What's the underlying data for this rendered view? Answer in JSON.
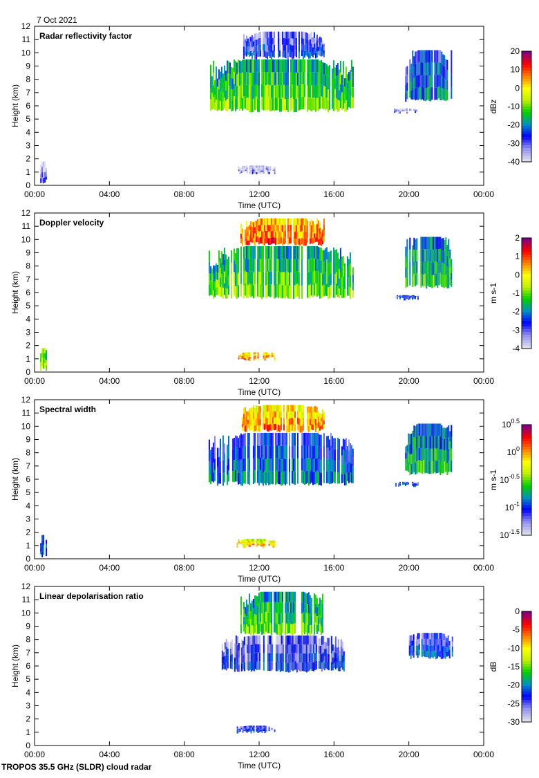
{
  "date": "7 Oct 2021",
  "footer": "TROPOS 35.5 GHz (SLDR) cloud radar",
  "colormap": [
    "#dcdcec",
    "#9090f0",
    "#0000ff",
    "#0090c0",
    "#00d000",
    "#c0f000",
    "#ffff00",
    "#ff8000",
    "#ff0000",
    "#800080"
  ],
  "chart_data": [
    {
      "type": "heatmap",
      "title": "Radar reflectivity factor",
      "xlabel": "Time (UTC)",
      "ylabel": "Height (km)",
      "xticks": [
        "00:00",
        "04:00",
        "08:00",
        "12:00",
        "16:00",
        "20:00",
        "00:00"
      ],
      "xlim": [
        0,
        24
      ],
      "ylim": [
        0,
        12
      ],
      "yticks": [
        0,
        1,
        2,
        3,
        4,
        5,
        6,
        7,
        8,
        9,
        10,
        11,
        12
      ],
      "colorbar": {
        "label": "dBz",
        "min": -40,
        "max": 20,
        "ticks": [
          "20",
          "10",
          "0",
          "-10",
          "-20",
          "-30",
          "-40"
        ],
        "scale": "linear"
      },
      "features": [
        {
          "t": [
            9.3,
            17.0
          ],
          "h": [
            5.5,
            9.5
          ],
          "value": -15
        },
        {
          "t": [
            11.0,
            15.5
          ],
          "h": [
            9.5,
            11.6
          ],
          "value": -30
        },
        {
          "t": [
            19.8,
            22.3
          ],
          "h": [
            6.3,
            10.2
          ],
          "value": -25
        },
        {
          "t": [
            19.2,
            20.5
          ],
          "h": [
            5.4,
            5.8
          ],
          "value": -38
        },
        {
          "t": [
            10.8,
            12.8
          ],
          "h": [
            0.8,
            1.5
          ],
          "value": -38
        },
        {
          "t": [
            0.3,
            0.6
          ],
          "h": [
            0.1,
            1.8
          ],
          "value": -38
        }
      ]
    },
    {
      "type": "heatmap",
      "title": "Doppler velocity",
      "xlabel": "Time (UTC)",
      "ylabel": "Height (km)",
      "xticks": [
        "00:00",
        "04:00",
        "08:00",
        "12:00",
        "16:00",
        "20:00",
        "00:00"
      ],
      "xlim": [
        0,
        24
      ],
      "ylim": [
        0,
        12
      ],
      "yticks": [
        0,
        1,
        2,
        3,
        4,
        5,
        6,
        7,
        8,
        9,
        10,
        11,
        12
      ],
      "colorbar": {
        "label": "m s-1",
        "min": -4,
        "max": 2,
        "ticks": [
          "2",
          "1",
          "0",
          "-1",
          "-2",
          "-3",
          "-4"
        ],
        "scale": "linear"
      },
      "features": [
        {
          "t": [
            9.3,
            17.0
          ],
          "h": [
            5.5,
            9.5
          ],
          "value": -1.5
        },
        {
          "t": [
            11.0,
            15.5
          ],
          "h": [
            9.5,
            11.6
          ],
          "value": 0.5
        },
        {
          "t": [
            19.8,
            22.3
          ],
          "h": [
            6.3,
            10.2
          ],
          "value": -1.8
        },
        {
          "t": [
            19.2,
            20.5
          ],
          "h": [
            5.4,
            5.8
          ],
          "value": -2.8
        },
        {
          "t": [
            10.8,
            12.8
          ],
          "h": [
            0.8,
            1.5
          ],
          "value": 0.2
        },
        {
          "t": [
            0.3,
            0.6
          ],
          "h": [
            0.1,
            1.8
          ],
          "value": -1.0
        }
      ]
    },
    {
      "type": "heatmap",
      "title": "Spectral width",
      "xlabel": "Time (UTC)",
      "ylabel": "Height (km)",
      "xticks": [
        "00:00",
        "04:00",
        "08:00",
        "12:00",
        "16:00",
        "20:00",
        "00:00"
      ],
      "xlim": [
        0,
        24
      ],
      "ylim": [
        0,
        12
      ],
      "yticks": [
        0,
        1,
        2,
        3,
        4,
        5,
        6,
        7,
        8,
        9,
        10,
        11,
        12
      ],
      "colorbar": {
        "label": "m s-1",
        "min": -1.5,
        "max": 0.5,
        "ticks": [
          "10^0.5",
          "10^0",
          "10^-0.5",
          "10^-1",
          "10^-1.5"
        ],
        "scale": "log"
      },
      "features": [
        {
          "t": [
            9.3,
            17.0
          ],
          "h": [
            5.5,
            9.5
          ],
          "value": 0.1
        },
        {
          "t": [
            11.0,
            15.5
          ],
          "h": [
            9.5,
            11.6
          ],
          "value": 0.8
        },
        {
          "t": [
            19.8,
            22.3
          ],
          "h": [
            6.3,
            10.2
          ],
          "value": 0.15
        },
        {
          "t": [
            19.2,
            20.5
          ],
          "h": [
            5.4,
            5.8
          ],
          "value": 0.08
        },
        {
          "t": [
            10.8,
            12.8
          ],
          "h": [
            0.8,
            1.5
          ],
          "value": 0.6
        },
        {
          "t": [
            0.3,
            0.6
          ],
          "h": [
            0.1,
            1.8
          ],
          "value": 0.1
        }
      ]
    },
    {
      "type": "heatmap",
      "title": "Linear depolarisation ratio",
      "xlabel": "Time (UTC)",
      "ylabel": "Height (km)",
      "xticks": [
        "00:00",
        "04:00",
        "08:00",
        "12:00",
        "16:00",
        "20:00",
        "00:00"
      ],
      "xlim": [
        0,
        24
      ],
      "ylim": [
        0,
        12
      ],
      "yticks": [
        0,
        1,
        2,
        3,
        4,
        5,
        6,
        7,
        8,
        9,
        10,
        11,
        12
      ],
      "colorbar": {
        "label": "dB",
        "min": -30,
        "max": 0,
        "ticks": [
          "0",
          "-5",
          "-10",
          "-15",
          "-20",
          "-25",
          "-30"
        ],
        "scale": "linear"
      },
      "features": [
        {
          "t": [
            10.0,
            16.5
          ],
          "h": [
            5.5,
            8.3
          ],
          "value": -25
        },
        {
          "t": [
            11.0,
            15.5
          ],
          "h": [
            8.3,
            11.6
          ],
          "value": -18
        },
        {
          "t": [
            20.0,
            22.3
          ],
          "h": [
            6.5,
            8.5
          ],
          "value": -24
        },
        {
          "t": [
            10.8,
            12.8
          ],
          "h": [
            0.9,
            1.5
          ],
          "value": -25
        }
      ]
    }
  ]
}
